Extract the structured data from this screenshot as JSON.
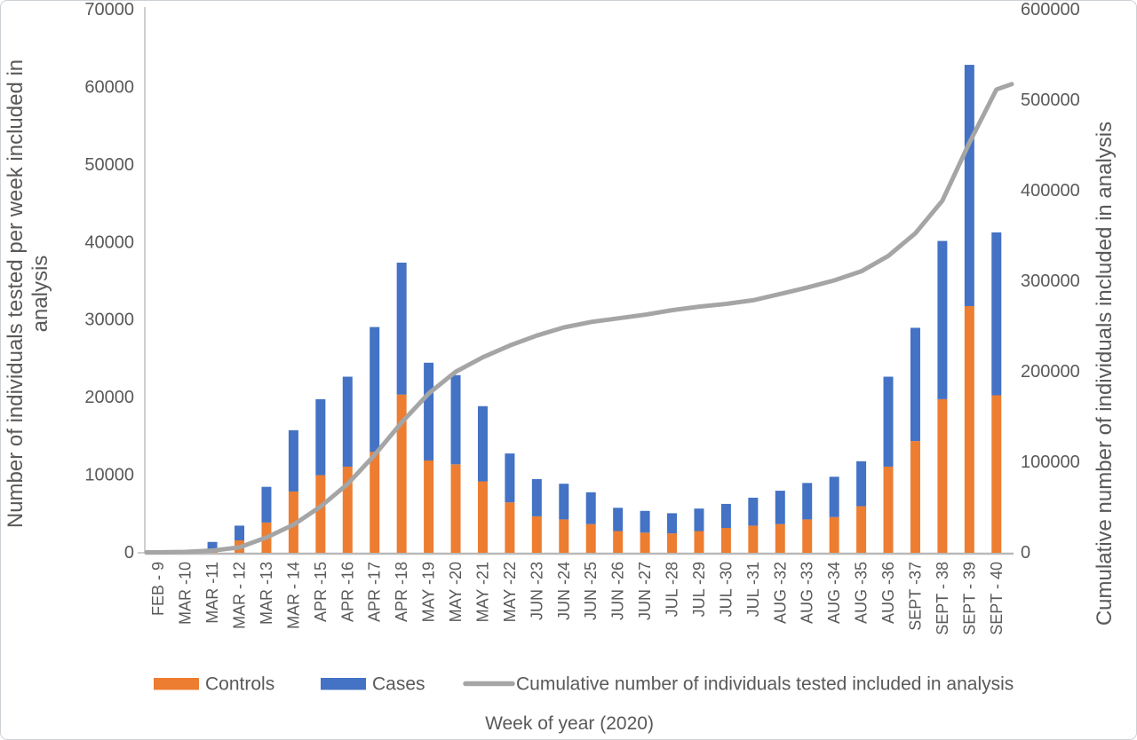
{
  "figure": {
    "description": "Combination chart: stacked weekly bars of controls and cases with cumulative tested line on secondary axis"
  },
  "chart_data": {
    "type": "bar",
    "subtype": "stacked-bars-with-line",
    "categories": [
      "FEB - 9",
      "MAR -10",
      "MAR -11",
      "MAR - 12",
      "MAR -13",
      "MAR - 14",
      "APR -15",
      "APR -16",
      "APR -17",
      "APR -18",
      "MAY -19",
      "MAY -20",
      "MAY -21",
      "MAY -22",
      "JUN -23",
      "JUN -24",
      "JUN -25",
      "JUN -26",
      "JUN -27",
      "JUL -28",
      "JUL -29",
      "JUL -30",
      "JUL -31",
      "AUG -32",
      "AUG -33",
      "AUG -34",
      "AUG -35",
      "AUG -36",
      "SEPT -37",
      "SEPT - 38",
      "SEPT - 39",
      "SEPT - 40"
    ],
    "series": [
      {
        "name": "Controls",
        "type": "bar",
        "stack": "tested",
        "axis": "left",
        "color": "#ED7D31",
        "values": [
          150,
          100,
          300,
          1600,
          3900,
          7900,
          10000,
          11100,
          13000,
          20400,
          11900,
          11400,
          9200,
          6500,
          4700,
          4300,
          3700,
          2800,
          2600,
          2500,
          2800,
          3200,
          3500,
          3700,
          4300,
          4600,
          6000,
          11100,
          14400,
          19800,
          31800,
          20300
        ]
      },
      {
        "name": "Cases",
        "type": "bar",
        "stack": "tested",
        "axis": "left",
        "color": "#4472C4",
        "values": [
          100,
          150,
          1100,
          1900,
          4600,
          7900,
          9800,
          11600,
          16100,
          17000,
          12600,
          11500,
          9700,
          6300,
          4800,
          4600,
          4100,
          3000,
          2800,
          2600,
          2900,
          3100,
          3600,
          4300,
          4700,
          5200,
          5800,
          11600,
          14600,
          20400,
          31100,
          21000
        ]
      },
      {
        "name": "Cumulative number of individuals tested included in analysis",
        "type": "line",
        "axis": "right",
        "color": "#A5A5A5",
        "values": [
          500,
          1000,
          2500,
          6000,
          17000,
          31000,
          51000,
          76000,
          108000,
          144000,
          176000,
          200000,
          216000,
          229000,
          240000,
          249000,
          255000,
          259000,
          263000,
          268000,
          272000,
          275000,
          279000,
          286000,
          293000,
          301000,
          311000,
          328000,
          353000,
          389000,
          453000,
          512000
        ]
      }
    ],
    "left_axis": {
      "min": 0,
      "max": 70000,
      "step": 10000,
      "label": "Number of individuals tested per week included in analysis",
      "label_lines": [
        "Number of individuals tested per week included in",
        "analysis"
      ]
    },
    "right_axis": {
      "min": 0,
      "max": 600000,
      "step": 100000,
      "label": "Cumulative number of individuals included in analysis"
    },
    "xlabel": "Week of year (2020)",
    "legend_position": "bottom",
    "grid": false
  }
}
